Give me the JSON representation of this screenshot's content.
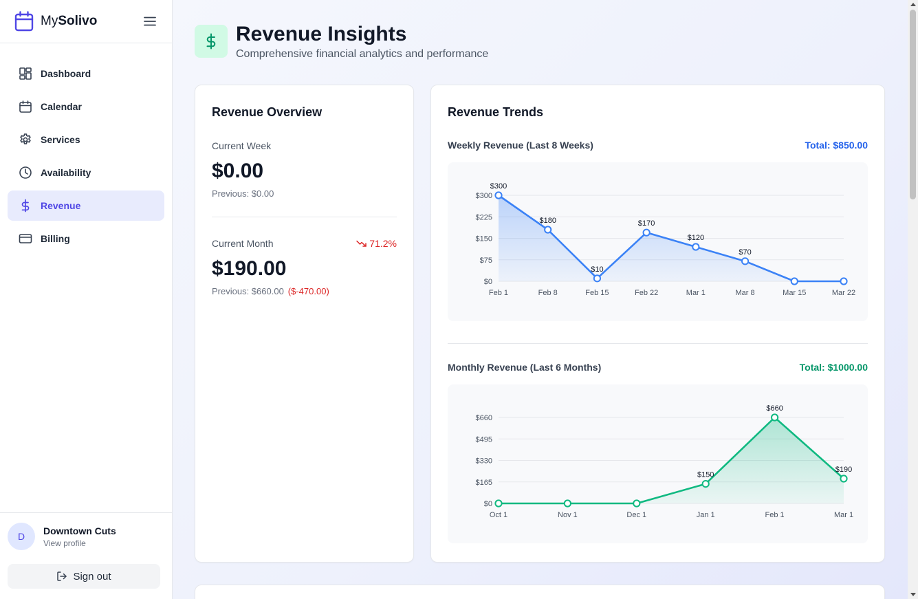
{
  "brand": {
    "prefix": "My",
    "name": "Solivo"
  },
  "sidebar": {
    "items": [
      {
        "label": "Dashboard",
        "icon": "dashboard-icon"
      },
      {
        "label": "Calendar",
        "icon": "calendar-icon"
      },
      {
        "label": "Services",
        "icon": "gear-icon"
      },
      {
        "label": "Availability",
        "icon": "clock-icon"
      },
      {
        "label": "Revenue",
        "icon": "dollar-icon",
        "active": true
      },
      {
        "label": "Billing",
        "icon": "credit-card-icon"
      }
    ],
    "profile": {
      "initial": "D",
      "name": "Downtown Cuts",
      "link": "View profile"
    },
    "signout": "Sign out"
  },
  "header": {
    "title": "Revenue Insights",
    "subtitle": "Comprehensive financial analytics and performance"
  },
  "overview": {
    "title": "Revenue Overview",
    "week": {
      "label": "Current Week",
      "value": "$0.00",
      "previous": "Previous: $0.00"
    },
    "month": {
      "label": "Current Month",
      "value": "$190.00",
      "previous": "Previous: $660.00",
      "diff": "($-470.00)",
      "trend": "71.2%"
    }
  },
  "trends": {
    "title": "Revenue Trends",
    "weekly": {
      "title": "Weekly Revenue (Last 8 Weeks)",
      "total": "Total: $850.00",
      "color": "#3b82f6"
    },
    "monthly": {
      "title": "Monthly Revenue (Last 6 Months)",
      "total": "Total: $1000.00",
      "color": "#10b981"
    }
  },
  "chart_data": [
    {
      "type": "area",
      "title": "Weekly Revenue (Last 8 Weeks)",
      "categories": [
        "Feb 1",
        "Feb 8",
        "Feb 15",
        "Feb 22",
        "Mar 1",
        "Mar 8",
        "Mar 15",
        "Mar 22"
      ],
      "values": [
        300,
        180,
        10,
        170,
        120,
        70,
        0,
        0
      ],
      "point_labels": [
        "$300",
        "$180",
        "$10",
        "$170",
        "$120",
        "$70",
        "",
        ""
      ],
      "yticks": [
        "$0",
        "$75",
        "$150",
        "$225",
        "$300"
      ],
      "ylim": [
        0,
        300
      ],
      "grid": true,
      "color": "#3b82f6"
    },
    {
      "type": "area",
      "title": "Monthly Revenue (Last 6 Months)",
      "categories": [
        "Oct 1",
        "Nov 1",
        "Dec 1",
        "Jan 1",
        "Feb 1",
        "Mar 1"
      ],
      "values": [
        0,
        0,
        0,
        150,
        660,
        190
      ],
      "point_labels": [
        "",
        "",
        "",
        "$150",
        "$660",
        "$190"
      ],
      "yticks": [
        "$0",
        "$165",
        "$330",
        "$495",
        "$660"
      ],
      "ylim": [
        0,
        660
      ],
      "grid": true,
      "color": "#10b981"
    }
  ]
}
